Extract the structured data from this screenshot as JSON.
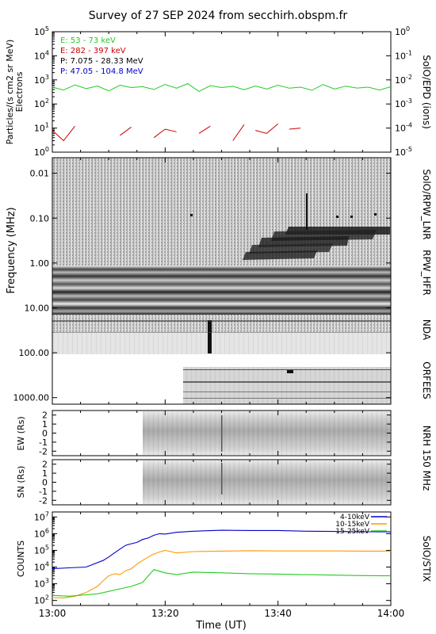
{
  "title": "Survey of 27 SEP 2024 from secchirh.obspm.fr",
  "xlabel": "Time (UT)",
  "time_ticks": [
    "13:00",
    "13:20",
    "13:40",
    "14:00"
  ],
  "x_range_minutes": [
    0,
    60
  ],
  "panels": {
    "epd": {
      "ylabel_1": "Particles/(s cm2 sr MeV)",
      "ylabel_2": "Electrons",
      "right_label": "SolO/EPD (ions)",
      "yticks_left": [
        "10^0",
        "10^1",
        "10^2",
        "10^3",
        "10^4",
        "10^5"
      ],
      "yticks_right": [
        "10^-5",
        "10^-4",
        "10^-3",
        "10^-2",
        "10^-1",
        "10^0"
      ],
      "legend": [
        {
          "label": "E: 53 - 73 keV",
          "color": "#22cc22"
        },
        {
          "label": "E: 282 - 397 keV",
          "color": "#cc0000"
        },
        {
          "label": "P: 7.075 - 28.33 MeV",
          "color": "#000000"
        },
        {
          "label": "P: 47.05 - 104.8 MeV",
          "color": "#0000cc"
        }
      ]
    },
    "radio": {
      "ylabel": "Frequency (MHz)",
      "labels": {
        "lnr": "SolO/RPW_LNR",
        "hfr": "RPW_HFR",
        "nda": "NDA",
        "orfees": "ORFEES"
      },
      "freq_ticks": [
        "0.01",
        "0.10",
        "1.00",
        "10.00",
        "100.00",
        "1000.00"
      ]
    },
    "nrh_ew": {
      "ylabel": "EW (Rs)",
      "yticks": [
        "2",
        "1",
        "0",
        "-1",
        "-2"
      ]
    },
    "nrh_sn": {
      "ylabel": "SN (Rs)",
      "yticks": [
        "2",
        "1",
        "0",
        "-1",
        "-2"
      ]
    },
    "nrh_label": "NRH 150 MHz",
    "stix": {
      "ylabel": "COUNTS",
      "right_label": "SolO/STIX",
      "yticks": [
        "10^2",
        "10^3",
        "10^4",
        "10^5",
        "10^6",
        "10^7"
      ],
      "legend": [
        {
          "label": "4-10keV",
          "color": "#0000cc"
        },
        {
          "label": "10-15keV",
          "color": "#ff9900"
        },
        {
          "label": "15-25keV",
          "color": "#22cc22"
        }
      ]
    }
  },
  "chart_data": [
    {
      "type": "line",
      "panel": "SolO/EPD",
      "log_y": true,
      "ylim_exp": [
        0,
        5
      ],
      "series": [
        {
          "name": "E: 53 - 73 keV",
          "color": "#22cc22",
          "segmented": false,
          "x": [
            0,
            2,
            4,
            6,
            8,
            10,
            12,
            14,
            16,
            18,
            20,
            22,
            24,
            26,
            28,
            30,
            32,
            34,
            36,
            38,
            40,
            42,
            44,
            46,
            48,
            50,
            52,
            54,
            56,
            58,
            60
          ],
          "y": [
            500,
            380,
            620,
            430,
            560,
            350,
            600,
            480,
            520,
            400,
            650,
            450,
            700,
            330,
            580,
            480,
            540,
            390,
            560,
            420,
            600,
            450,
            500,
            370,
            640,
            420,
            550,
            460,
            500,
            380,
            520
          ]
        },
        {
          "name": "E: 282 - 397 keV",
          "color": "#cc0000",
          "segmented": true,
          "x": [
            0,
            2,
            4,
            6,
            8,
            10,
            12,
            14,
            16,
            18,
            20,
            22,
            24,
            26,
            28,
            30,
            32,
            34,
            36,
            38,
            40,
            42,
            44,
            46,
            48,
            50,
            52,
            54,
            56,
            58,
            60
          ],
          "y": [
            8,
            3,
            12,
            null,
            10,
            null,
            5,
            11,
            null,
            4,
            9,
            7,
            null,
            6,
            12,
            null,
            3,
            14,
            8,
            6,
            15,
            9,
            10,
            null,
            7,
            null,
            12,
            5,
            null,
            9,
            6
          ]
        }
      ]
    },
    {
      "type": "heatmap",
      "panel": "Radio dynamic spectrum",
      "log_y": true,
      "freq_range_mhz": [
        0.0045,
        1400
      ],
      "bands": [
        {
          "name": "SolO/RPW_LNR",
          "freq_mhz": [
            0.0045,
            1.0
          ],
          "t_min": [
            0,
            60
          ]
        },
        {
          "name": "RPW_HFR",
          "freq_mhz": [
            1.0,
            10.0
          ],
          "t_min": [
            0,
            60
          ]
        },
        {
          "name": "NDA",
          "freq_mhz": [
            10.0,
            80.0
          ],
          "t_min": [
            0,
            60
          ]
        },
        {
          "name": "ORFEES",
          "freq_mhz": [
            140,
            1000
          ],
          "t_min": [
            23,
            60
          ]
        }
      ],
      "burst_t_min": 28.5
    },
    {
      "type": "heatmap",
      "panel": "NRH 150 MHz EW",
      "ylim": [
        -2.5,
        2.5
      ],
      "data_t_min": [
        16.2,
        60
      ],
      "burst_t_min": 30.7
    },
    {
      "type": "heatmap",
      "panel": "NRH 150 MHz SN",
      "ylim": [
        -2.5,
        2.5
      ],
      "data_t_min": [
        16.2,
        60
      ],
      "burst_t_min": 30.7
    },
    {
      "type": "line",
      "panel": "SolO/STIX",
      "log_y": true,
      "ylim_exp": [
        2,
        7
      ],
      "series": [
        {
          "name": "4-10keV",
          "color": "#0000cc",
          "x": [
            0,
            3,
            6,
            9,
            10,
            11,
            12,
            13,
            14,
            15,
            16,
            17,
            18,
            19,
            20,
            22,
            25,
            30,
            35,
            40,
            45,
            50,
            55,
            60
          ],
          "y": [
            8000,
            9000,
            10000,
            25000,
            40000,
            70000,
            120000,
            200000,
            250000,
            300000,
            450000,
            550000,
            800000,
            1000000,
            950000,
            1200000,
            1400000,
            1600000,
            1550000,
            1550000,
            1400000,
            1350000,
            1300000,
            1280000
          ]
        },
        {
          "name": "10-15keV",
          "color": "#ff9900",
          "x": [
            0,
            2,
            4,
            6,
            8,
            9,
            10,
            11,
            12,
            13,
            14,
            15,
            16,
            17,
            18,
            19,
            20,
            21,
            22,
            25,
            30,
            35,
            40,
            45,
            50,
            55,
            60
          ],
          "y": [
            150,
            140,
            180,
            300,
            700,
            1500,
            3000,
            4000,
            3500,
            6000,
            8000,
            15000,
            25000,
            40000,
            60000,
            80000,
            100000,
            85000,
            70000,
            85000,
            90000,
            95000,
            92000,
            92000,
            92000,
            90000,
            90000
          ]
        },
        {
          "name": "15-25keV",
          "color": "#22cc22",
          "x": [
            0,
            3,
            6,
            8,
            10,
            12,
            14,
            16,
            17,
            18,
            20,
            22,
            25,
            30,
            35,
            40,
            45,
            50,
            55,
            60
          ],
          "y": [
            200,
            180,
            220,
            250,
            350,
            500,
            700,
            1200,
            3000,
            7000,
            4500,
            3500,
            5000,
            4500,
            4000,
            3800,
            3500,
            3300,
            3100,
            3000
          ]
        }
      ]
    }
  ]
}
